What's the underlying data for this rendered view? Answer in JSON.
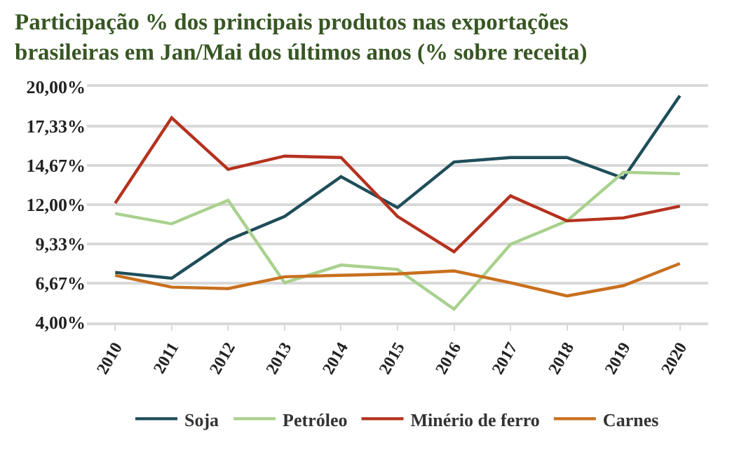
{
  "chart_data": {
    "type": "line",
    "title": "Participação % dos principais produtos nas exportações\nbrasileiras em Jan/Mai dos últimos anos (% sobre receita)",
    "categories": [
      "2010",
      "2011",
      "2012",
      "2013",
      "2014",
      "2015",
      "2016",
      "2017",
      "2018",
      "2019",
      "2020"
    ],
    "series": [
      {
        "name": "Soja",
        "color": "#1f4e5a",
        "values": [
          7.4,
          7.0,
          9.6,
          11.2,
          13.9,
          11.8,
          14.9,
          15.2,
          15.2,
          13.8,
          19.4
        ]
      },
      {
        "name": "Petróleo",
        "color": "#a9d18e",
        "values": [
          11.4,
          10.7,
          12.3,
          6.7,
          7.9,
          7.6,
          4.9,
          9.3,
          10.9,
          14.2,
          14.1
        ]
      },
      {
        "name": "Minério de ferro",
        "color": "#b5321f",
        "values": [
          12.1,
          17.9,
          14.4,
          15.3,
          15.2,
          11.2,
          8.8,
          12.6,
          10.9,
          11.1,
          11.9
        ]
      },
      {
        "name": "Carnes",
        "color": "#c8701e",
        "values": [
          7.2,
          6.4,
          6.3,
          7.1,
          7.2,
          7.3,
          7.5,
          6.7,
          5.8,
          6.5,
          8.0
        ]
      }
    ],
    "ylim": [
      4,
      20
    ],
    "yticks": [
      {
        "value": 4,
        "label": "4,00%"
      },
      {
        "value": 6.67,
        "label": "6,67%"
      },
      {
        "value": 9.33,
        "label": "9,33%"
      },
      {
        "value": 12,
        "label": "12,00%"
      },
      {
        "value": 14.67,
        "label": "14,67%"
      },
      {
        "value": 17.33,
        "label": "17,33%"
      },
      {
        "value": 20,
        "label": "20,00%"
      }
    ],
    "grid": "y",
    "legend": "bottom",
    "marker": "none",
    "line_style": "solid"
  }
}
